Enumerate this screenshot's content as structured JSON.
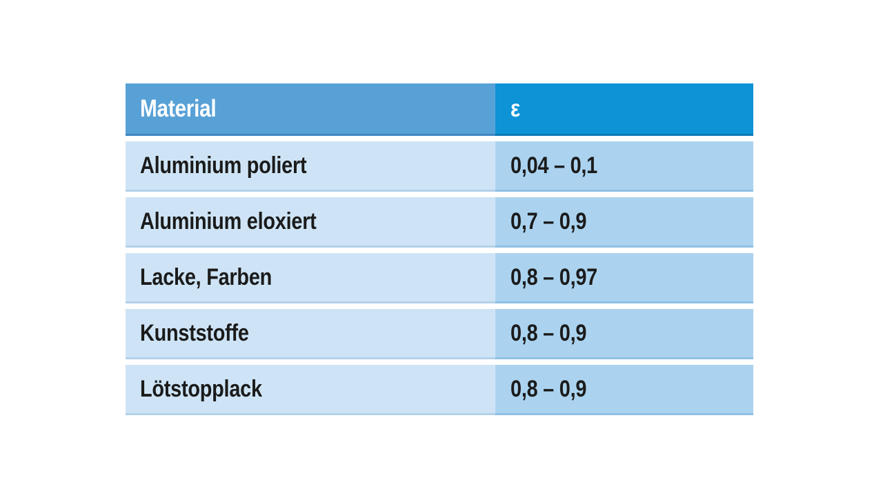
{
  "page": {
    "background": "#ffffff"
  },
  "colors": {
    "header_material_bg": "#58a1d7",
    "header_epsilon_bg": "#0e93d6",
    "body_material_bg": "#cee4f6",
    "body_epsilon_bg": "#abd3ef",
    "header_text": "#ffffff",
    "body_text": "#1b1b1b",
    "row_gap": "#ffffff"
  },
  "table": {
    "header": {
      "material": "Material",
      "epsilon": "ε"
    }
  },
  "chart_data": {
    "type": "table",
    "title": "",
    "columns": [
      "Material",
      "ε"
    ],
    "rows": [
      [
        "Aluminium poliert",
        "0,04 – 0,1"
      ],
      [
        "Aluminium eloxiert",
        "0,7 – 0,9"
      ],
      [
        "Lacke, Farben",
        "0,8 – 0,97"
      ],
      [
        "Kunststoffe",
        "0,8 – 0,9"
      ],
      [
        "Lötstopplack",
        "0,8 – 0,9"
      ]
    ],
    "layout": {
      "decimal_separator": ",",
      "range_separator": "–",
      "header_style": "two-tone blue",
      "row_separator": "white gaps"
    }
  }
}
